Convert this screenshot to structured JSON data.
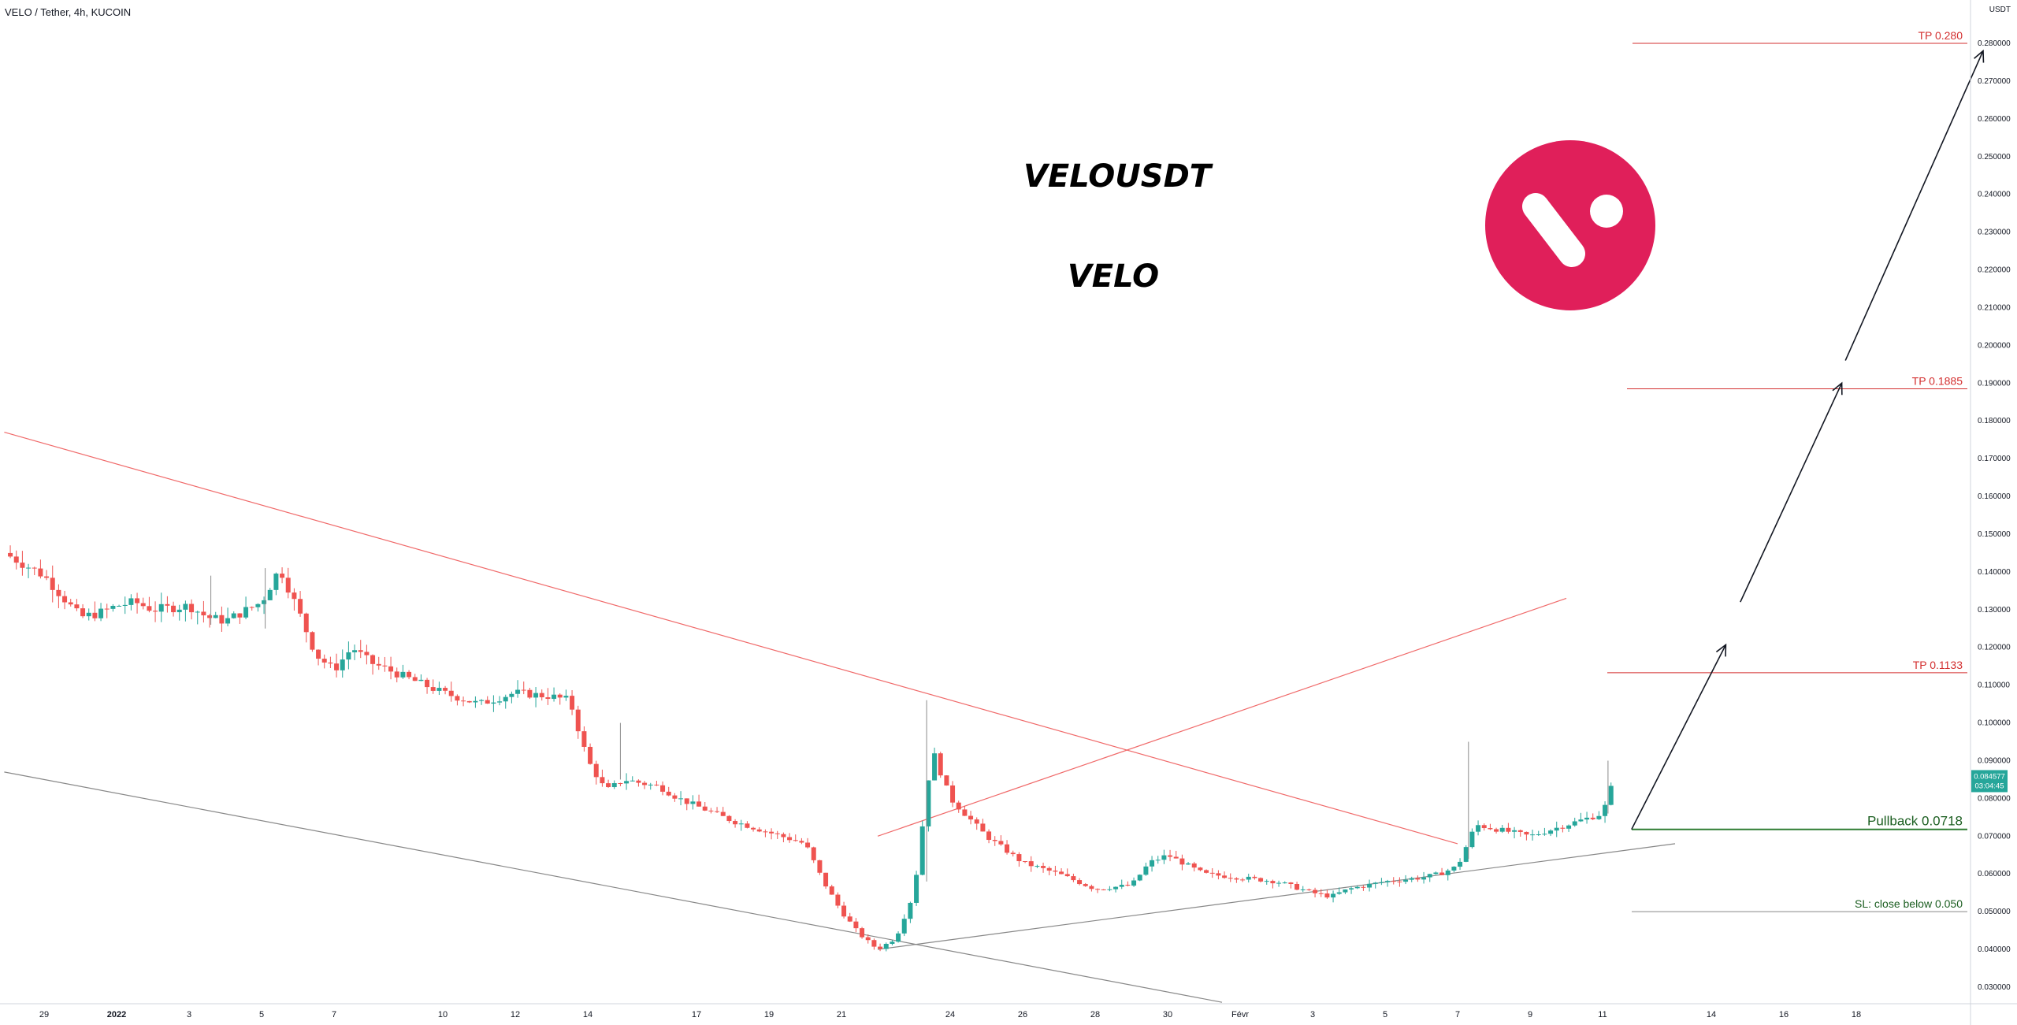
{
  "header": {
    "title": "VELO / Tether, 4h, KUCOIN"
  },
  "currency_label": "USDT",
  "colors": {
    "up": "#26a69a",
    "down": "#ef5350",
    "logo": "#e01f5a",
    "target": "#d32f2f",
    "pullback": "#1b5e20"
  },
  "chart_data": {
    "type": "candlestick",
    "interval": "4h",
    "ylim": [
      0.025,
      0.29
    ],
    "y_ticks": [
      0.03,
      0.04,
      0.05,
      0.06,
      0.07,
      0.08,
      0.09,
      0.1,
      0.11,
      0.12,
      0.13,
      0.14,
      0.15,
      0.16,
      0.17,
      0.18,
      0.19,
      0.2,
      0.21,
      0.22,
      0.23,
      0.24,
      0.25,
      0.26,
      0.27,
      0.28
    ],
    "x_ticks": [
      {
        "label": "29",
        "i": 0
      },
      {
        "label": "2022",
        "i": 2
      },
      {
        "label": "3",
        "i": 4
      },
      {
        "label": "5",
        "i": 6
      },
      {
        "label": "7",
        "i": 8
      },
      {
        "label": "10",
        "i": 11
      },
      {
        "label": "12",
        "i": 13
      },
      {
        "label": "14",
        "i": 15
      },
      {
        "label": "17",
        "i": 18
      },
      {
        "label": "19",
        "i": 20
      },
      {
        "label": "21",
        "i": 22
      },
      {
        "label": "24",
        "i": 25
      },
      {
        "label": "26",
        "i": 27
      },
      {
        "label": "28",
        "i": 29
      },
      {
        "label": "30",
        "i": 31
      },
      {
        "label": "Févr",
        "i": 33
      },
      {
        "label": "3",
        "i": 35
      },
      {
        "label": "5",
        "i": 37
      },
      {
        "label": "7",
        "i": 39
      },
      {
        "label": "9",
        "i": 41
      },
      {
        "label": "11",
        "i": 43
      },
      {
        "label": "14",
        "i": 46
      },
      {
        "label": "16",
        "i": 48
      },
      {
        "label": "18",
        "i": 50
      }
    ],
    "price_series": [
      [
        -1.1,
        0.145
      ],
      [
        0,
        0.139
      ],
      [
        1,
        0.128
      ],
      [
        1.5,
        0.129
      ],
      [
        2,
        0.131
      ],
      [
        2.5,
        0.132
      ],
      [
        3,
        0.13
      ],
      [
        4,
        0.131
      ],
      [
        4.5,
        0.128
      ],
      [
        5,
        0.127
      ],
      [
        6,
        0.132
      ],
      [
        6.5,
        0.141
      ],
      [
        7,
        0.13
      ],
      [
        7.5,
        0.118
      ],
      [
        8,
        0.114
      ],
      [
        8.5,
        0.12
      ],
      [
        9,
        0.116
      ],
      [
        10,
        0.112
      ],
      [
        11,
        0.108
      ],
      [
        12,
        0.105
      ],
      [
        13,
        0.108
      ],
      [
        14,
        0.107
      ],
      [
        14.5,
        0.106
      ],
      [
        15,
        0.09
      ],
      [
        15.5,
        0.082
      ],
      [
        16,
        0.085
      ],
      [
        17,
        0.083
      ],
      [
        17.5,
        0.08
      ],
      [
        18,
        0.078
      ],
      [
        19,
        0.074
      ],
      [
        20,
        0.071
      ],
      [
        21,
        0.068
      ],
      [
        21.5,
        0.058
      ],
      [
        22,
        0.05
      ],
      [
        22.5,
        0.044
      ],
      [
        23,
        0.04
      ],
      [
        23.5,
        0.043
      ],
      [
        24,
        0.055
      ],
      [
        24.5,
        0.093
      ],
      [
        25,
        0.08
      ],
      [
        25.5,
        0.075
      ],
      [
        26,
        0.07
      ],
      [
        27,
        0.063
      ],
      [
        28,
        0.06
      ],
      [
        29,
        0.056
      ],
      [
        30,
        0.057
      ],
      [
        30.5,
        0.063
      ],
      [
        31,
        0.065
      ],
      [
        32,
        0.06
      ],
      [
        33,
        0.059
      ],
      [
        34,
        0.058
      ],
      [
        35,
        0.055
      ],
      [
        35.5,
        0.054
      ],
      [
        36,
        0.056
      ],
      [
        37,
        0.058
      ],
      [
        38,
        0.059
      ],
      [
        38.5,
        0.06
      ],
      [
        39,
        0.062
      ],
      [
        39.5,
        0.073
      ],
      [
        40,
        0.072
      ],
      [
        41,
        0.07
      ],
      [
        42,
        0.073
      ],
      [
        43,
        0.076
      ],
      [
        43.3,
        0.0846
      ]
    ],
    "last_price": {
      "value": 0.084577,
      "label": "0.084577",
      "countdown": "03:04:45"
    },
    "lines": [
      {
        "name": "descending-resistance",
        "points": [
          [
            -1.1,
            0.177
          ],
          [
            39,
            0.068
          ]
        ]
      },
      {
        "name": "lower-channel",
        "points": [
          [
            -1.1,
            0.087
          ],
          [
            32.5,
            0.026
          ]
        ]
      },
      {
        "name": "ascending-support",
        "points": [
          [
            23,
            0.04
          ],
          [
            45,
            0.068
          ]
        ]
      },
      {
        "name": "neckline",
        "points": [
          [
            23,
            0.07
          ],
          [
            42,
            0.133
          ]
        ]
      }
    ],
    "levels": [
      {
        "name": "tp3",
        "label": "TP 0.280",
        "value": 0.28
      },
      {
        "name": "tp2",
        "label": "TP 0.1885",
        "value": 0.1885
      },
      {
        "name": "tp1",
        "label": "TP 0.1133",
        "value": 0.1133
      },
      {
        "name": "pullback",
        "label": "Pullback 0.0718",
        "value": 0.0718
      },
      {
        "name": "stop-loss",
        "label": "SL: close below 0.050",
        "value": 0.05
      }
    ],
    "arrows": [
      {
        "from": [
          43.8,
          0.0718
        ],
        "to": [
          46.4,
          0.1207
        ]
      },
      {
        "from": [
          46.8,
          0.132
        ],
        "to": [
          49.6,
          0.19
        ]
      },
      {
        "from": [
          49.7,
          0.196
        ],
        "to": [
          53.5,
          0.278
        ]
      }
    ],
    "annotations": [
      "VELOUSDT",
      "VELO"
    ]
  }
}
